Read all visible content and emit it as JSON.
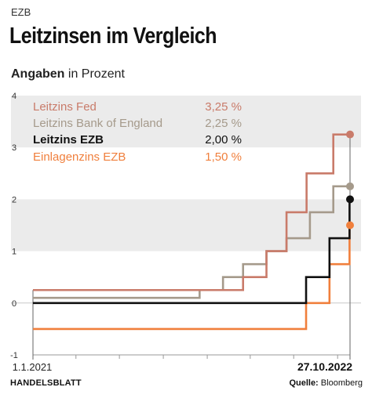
{
  "kicker": "EZB",
  "title": "Leitzinsen im Vergleich",
  "subtitle_bold": "Angaben",
  "subtitle_rest": " in Prozent",
  "footer": {
    "brand": "HANDELSBLATT",
    "source_label": "Quelle:",
    "source_value": "Bloomberg"
  },
  "colors": {
    "fed": "#c97b6a",
    "boe": "#a59a8b",
    "ezb": "#111111",
    "einlagen": "#f07f3c",
    "band": "#ebebeb"
  },
  "chart_data": {
    "type": "line",
    "step": true,
    "x_start": "2021-01-01",
    "x_end": "2022-10-27",
    "x_tick_labels": [
      "1.1.2021",
      "27.10.2022"
    ],
    "ylim": [
      -1,
      4
    ],
    "yticks": [
      "-1",
      "0",
      "1",
      "2",
      "3",
      "4"
    ],
    "grid": "alternating bands",
    "legend_position": "top-left",
    "series": [
      {
        "name": "Leitzins Fed",
        "key": "fed",
        "last_value_label": "3,25 %",
        "points": [
          [
            "2021-01-01",
            0.25
          ],
          [
            "2022-03-17",
            0.5
          ],
          [
            "2022-05-05",
            1.0
          ],
          [
            "2022-06-16",
            1.75
          ],
          [
            "2022-07-28",
            2.5
          ],
          [
            "2022-09-22",
            3.25
          ],
          [
            "2022-10-27",
            3.25
          ]
        ]
      },
      {
        "name": "Leitzins Bank of England",
        "key": "boe",
        "last_value_label": "2,25 %",
        "points": [
          [
            "2021-01-01",
            0.1
          ],
          [
            "2021-12-16",
            0.25
          ],
          [
            "2022-02-03",
            0.5
          ],
          [
            "2022-03-17",
            0.75
          ],
          [
            "2022-05-05",
            1.0
          ],
          [
            "2022-06-16",
            1.25
          ],
          [
            "2022-08-04",
            1.75
          ],
          [
            "2022-09-22",
            2.25
          ],
          [
            "2022-10-27",
            2.25
          ]
        ]
      },
      {
        "name": "Leitzins EZB",
        "key": "ezb",
        "last_value_label": "2,00 %",
        "points": [
          [
            "2021-01-01",
            0.0
          ],
          [
            "2022-07-27",
            0.5
          ],
          [
            "2022-09-14",
            1.25
          ],
          [
            "2022-10-26",
            2.0
          ],
          [
            "2022-10-27",
            2.0
          ]
        ]
      },
      {
        "name": "Einlagenzins EZB",
        "key": "einlagen",
        "last_value_label": "1,50 %",
        "points": [
          [
            "2021-01-01",
            -0.5
          ],
          [
            "2022-07-27",
            0.0
          ],
          [
            "2022-09-14",
            0.75
          ],
          [
            "2022-10-26",
            1.5
          ],
          [
            "2022-10-27",
            1.5
          ]
        ]
      }
    ]
  }
}
